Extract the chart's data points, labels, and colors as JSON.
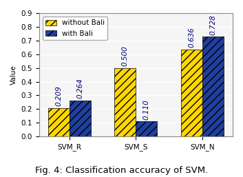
{
  "categories": [
    "SVM_R",
    "SVM_S",
    "SVM_N"
  ],
  "without_bali": [
    0.209,
    0.5,
    0.636
  ],
  "with_bali": [
    0.264,
    0.11,
    0.728
  ],
  "without_bali_label": "without Bali",
  "with_bali_label": "with Bali",
  "ylabel": "Value",
  "ylim": [
    0.0,
    0.9
  ],
  "yticks": [
    0.0,
    0.1,
    0.2,
    0.3,
    0.4,
    0.5,
    0.6,
    0.7,
    0.8,
    0.9
  ],
  "bar_width": 0.32,
  "color_without": "#FFD700",
  "color_with": "#1F3F9F",
  "hatch_without": "///",
  "hatch_with": "///",
  "caption": "Fig. 4: Classification accuracy of SVM.",
  "caption_fontsize": 9.5,
  "label_fontsize": 7.5,
  "tick_fontsize": 7.5,
  "legend_fontsize": 7.5,
  "axes_bg": "#f0f0f0"
}
